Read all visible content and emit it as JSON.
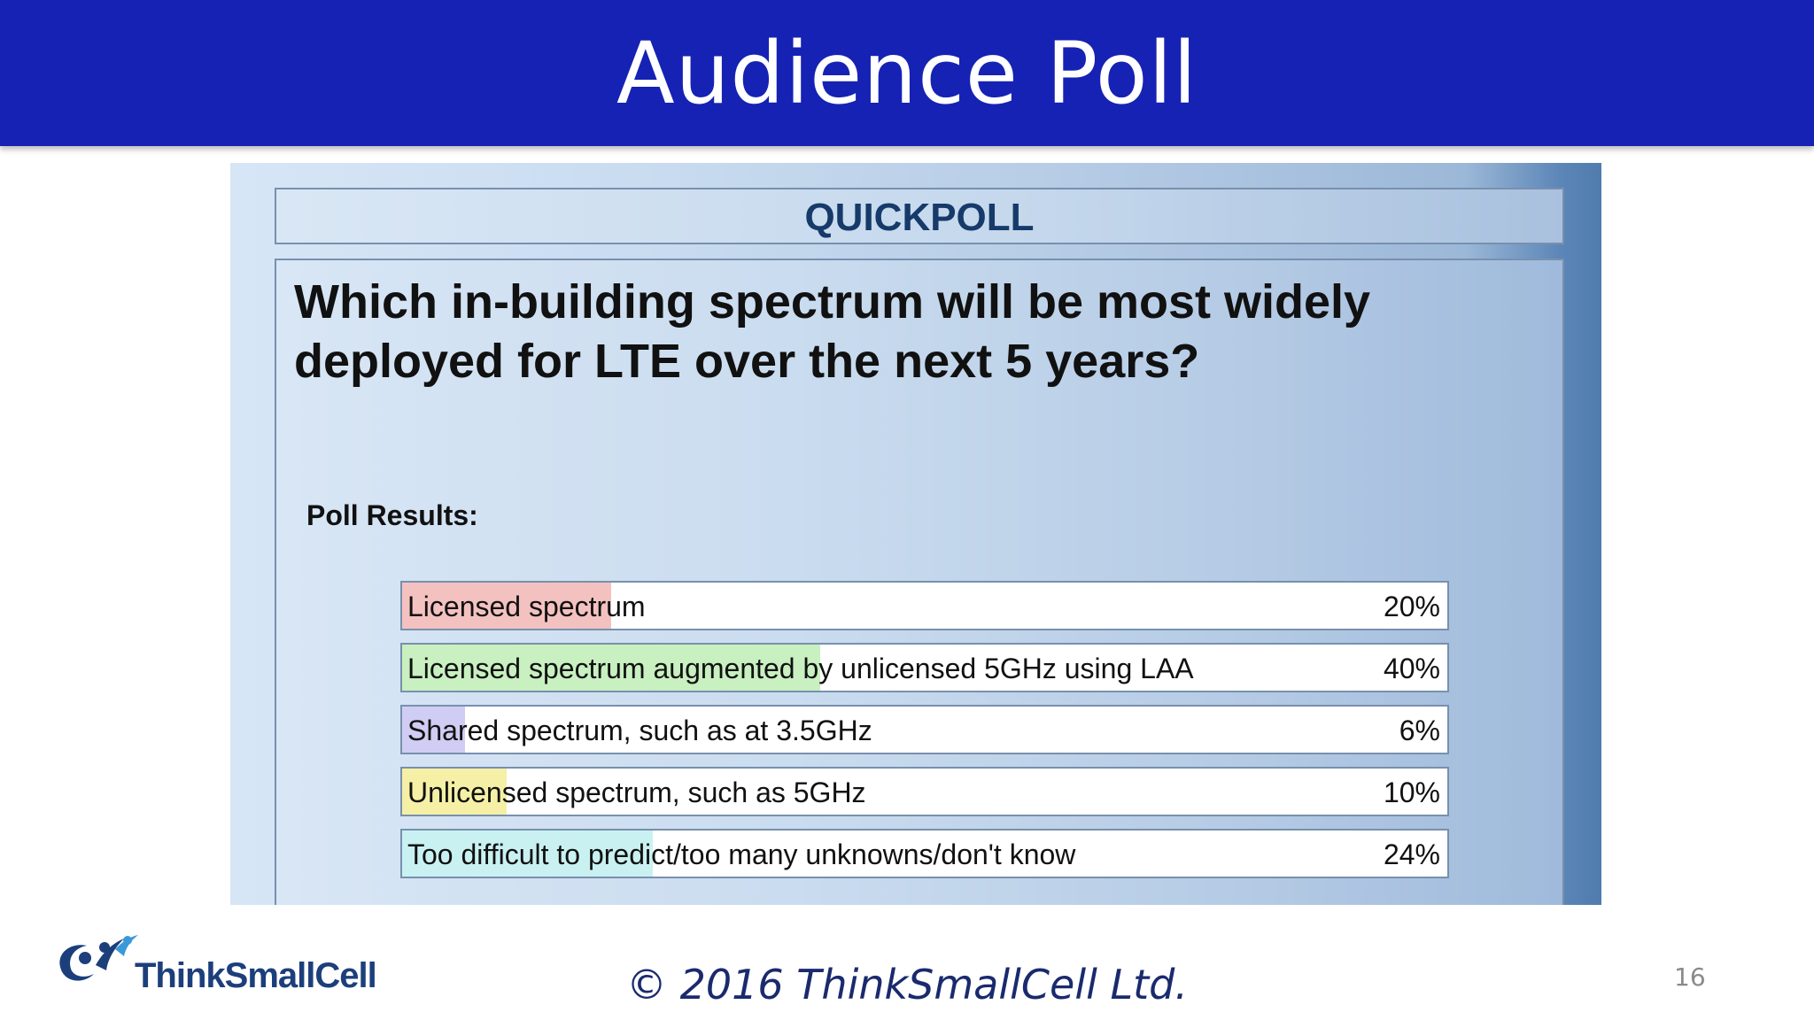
{
  "slide": {
    "title": "Audience Poll",
    "copyright": "© 2016 ThinkSmallCell Ltd.",
    "page_number": "16",
    "logo_text": "ThinkSmallCell",
    "logo_icon": "people-swoosh-icon"
  },
  "poll": {
    "header": "QUICKPOLL",
    "question": "Which in-building spectrum will be most widely deployed for LTE over the next 5 years?",
    "results_label": "Poll Results:",
    "results": [
      {
        "label": "Licensed spectrum",
        "percent_text": "20%",
        "percent": 20,
        "color": "#f4c1c1"
      },
      {
        "label": "Licensed spectrum augmented by unlicensed 5GHz using LAA",
        "percent_text": "40%",
        "percent": 40,
        "color": "#c8f0c0"
      },
      {
        "label": "Shared spectrum, such as at 3.5GHz",
        "percent_text": "6%",
        "percent": 6,
        "color": "#cfcdf4"
      },
      {
        "label": "Unlicensed spectrum, such as 5GHz",
        "percent_text": "10%",
        "percent": 10,
        "color": "#f5f0a6"
      },
      {
        "label": "Too difficult to predict/too many unknowns/don't know",
        "percent_text": "24%",
        "percent": 24,
        "color": "#c9f1f2"
      }
    ]
  },
  "colors": {
    "header_bg": "#1622b4",
    "header_text": "#ffffff",
    "quickpoll_text": "#163a69",
    "copyright_text": "#1a2a6e",
    "logo_text": "#1c3f7c"
  }
}
